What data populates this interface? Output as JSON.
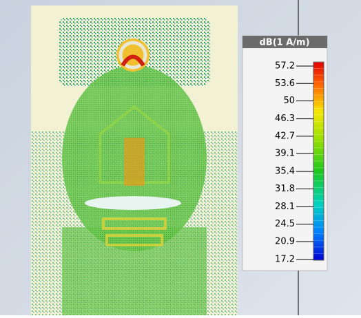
{
  "colorbar": {
    "title": "dB(1 A/m)",
    "ticks": [
      57.2,
      53.6,
      50,
      46.3,
      42.7,
      39.1,
      35.4,
      31.8,
      28.1,
      24.5,
      20.9,
      17.2
    ]
  }
}
